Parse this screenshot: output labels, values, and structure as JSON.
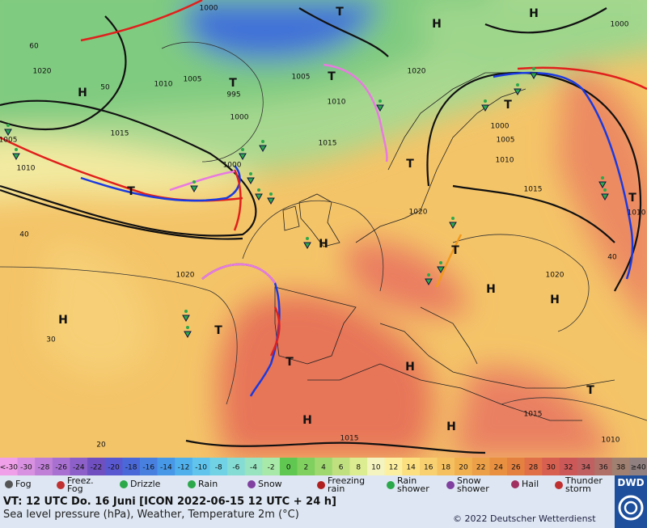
{
  "map": {
    "labels": [
      "1000",
      "T",
      "H",
      "H",
      "1000",
      "1020",
      "H",
      "1010",
      "1005",
      "T",
      "995",
      "1000",
      "1015",
      "1005",
      "T",
      "1010",
      "1020",
      "T",
      "1000",
      "1005",
      "1010",
      "1015",
      "T",
      "1015",
      "1000",
      "T",
      "1010",
      "1005",
      "1020",
      "T",
      "1010",
      "H",
      "T",
      "H",
      "H",
      "1020",
      "1020",
      "H",
      "T",
      "T",
      "H",
      "H",
      "H",
      "T",
      "1015",
      "1015",
      "1010",
      "60",
      "50",
      "40",
      "30",
      "20",
      "40"
    ]
  },
  "scale": {
    "labels": [
      "<-30",
      "-30",
      "-28",
      "-26",
      "-24",
      "-22",
      "-20",
      "-18",
      "-16",
      "-14",
      "-12",
      "-10",
      "-8",
      "-6",
      "-4",
      "-2",
      "0",
      "2",
      "4",
      "6",
      "8",
      "10",
      "12",
      "14",
      "16",
      "18",
      "20",
      "22",
      "24",
      "26",
      "28",
      "30",
      "32",
      "34",
      "36",
      "38",
      "≥40"
    ]
  },
  "legend": {
    "items": [
      [
        "Fog"
      ],
      [
        "Freez.",
        "Fog"
      ],
      [
        "Drizzle"
      ],
      [
        "Rain"
      ],
      [
        "Snow"
      ],
      [
        "Freezing",
        "rain"
      ],
      [
        "Rain",
        "shower"
      ],
      [
        "Snow",
        "shower"
      ],
      [
        "Hail"
      ],
      [
        "Thunder",
        "storm"
      ]
    ]
  },
  "footer": {
    "valid_time": "VT: 12 UTC Do.  16 Juni [ICON 2022-06-15  12 UTC + 24 h]",
    "description": "Sea level pressure (hPa), Weather, Temperature 2m (°C)",
    "copyright": "© 2022 Deutscher Wetterdienst",
    "logo": "DWD"
  }
}
